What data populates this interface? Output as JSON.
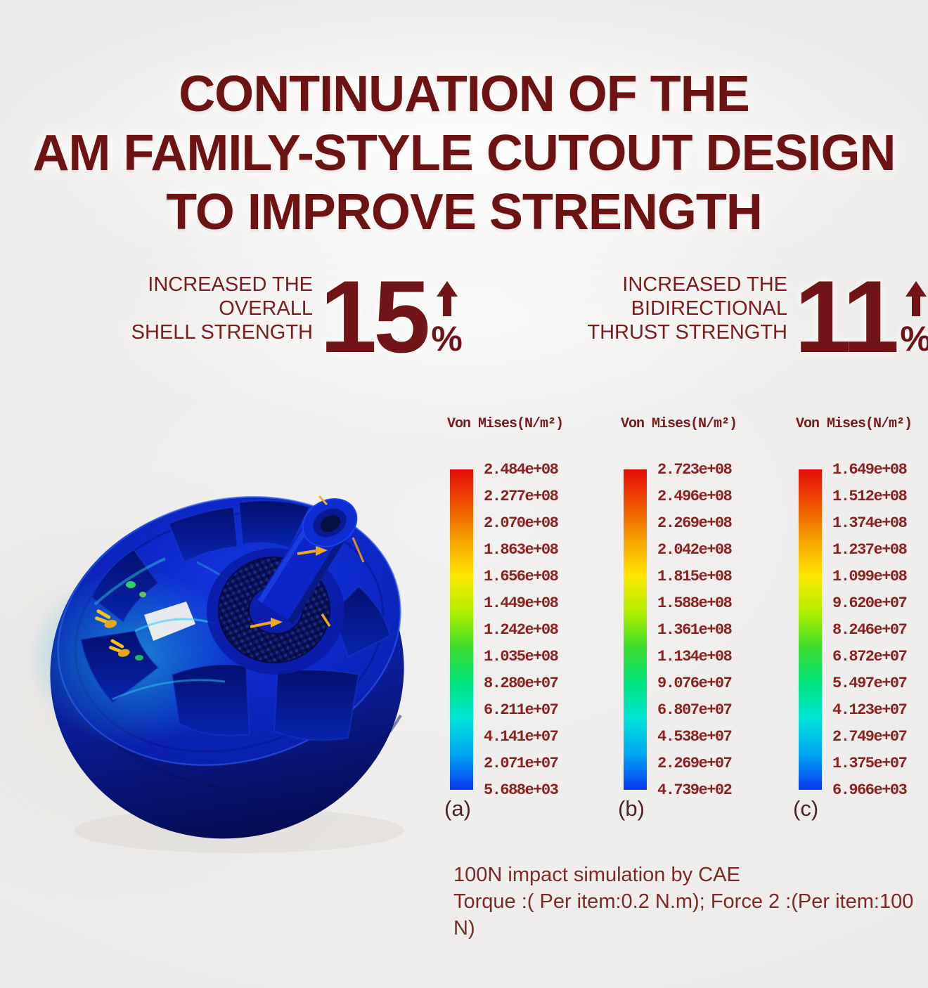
{
  "title": {
    "lines": [
      "CONTINUATION OF THE",
      "AM FAMILY-STYLE CUTOUT DESIGN",
      "TO IMPROVE STRENGTH"
    ]
  },
  "stats": [
    {
      "label_lines": [
        "INCREASED THE OVERALL",
        "SHELL STRENGTH"
      ],
      "value": "15",
      "unit": "%",
      "direction": "up"
    },
    {
      "label_lines": [
        "INCREASED THE BIDIRECTIONAL",
        "THRUST STRENGTH"
      ],
      "value": "11",
      "unit": "%",
      "direction": "up"
    }
  ],
  "chart_data": [
    {
      "type": "heatmap",
      "role": "colorbar-legend",
      "title": "Von Mises(N/m²)",
      "panel_label": "(a)",
      "tick_values": [
        "2.484e+08",
        "2.277e+08",
        "2.070e+08",
        "1.863e+08",
        "1.656e+08",
        "1.449e+08",
        "1.242e+08",
        "1.035e+08",
        "8.280e+07",
        "6.211e+07",
        "4.141e+07",
        "2.071e+07",
        "5.688e+03"
      ],
      "gradient": [
        "#e60c0c",
        "#ef5200",
        "#f7a300",
        "#fde800",
        "#b2ee00",
        "#3ddd2a",
        "#00e47e",
        "#00e4d8",
        "#00a6f2",
        "#0837f2"
      ]
    },
    {
      "type": "heatmap",
      "role": "colorbar-legend",
      "title": "Von Mises(N/m²)",
      "panel_label": "(b)",
      "tick_values": [
        "2.723e+08",
        "2.496e+08",
        "2.269e+08",
        "2.042e+08",
        "1.815e+08",
        "1.588e+08",
        "1.361e+08",
        "1.134e+08",
        "9.076e+07",
        "6.807e+07",
        "4.538e+07",
        "2.269e+07",
        "4.739e+02"
      ],
      "gradient": [
        "#e60c0c",
        "#ef5200",
        "#f7a300",
        "#fde800",
        "#b2ee00",
        "#3ddd2a",
        "#00e47e",
        "#00e4d8",
        "#00a6f2",
        "#0837f2"
      ]
    },
    {
      "type": "heatmap",
      "role": "colorbar-legend",
      "title": "Von Mises(N/m²)",
      "panel_label": "(c)",
      "tick_values": [
        "1.649e+08",
        "1.512e+08",
        "1.374e+08",
        "1.237e+08",
        "1.099e+08",
        "9.620e+07",
        "8.246e+07",
        "6.872e+07",
        "5.497e+07",
        "4.123e+07",
        "2.749e+07",
        "1.375e+07",
        "6.966e+03"
      ],
      "gradient": [
        "#e60c0c",
        "#ef5200",
        "#f7a300",
        "#fde800",
        "#b2ee00",
        "#3ddd2a",
        "#00e47e",
        "#00e4d8",
        "#00a6f2",
        "#0837f2"
      ]
    }
  ],
  "caption": {
    "lines": [
      "100N impact simulation by CAE",
      "Torque :( Per item:0.2 N.m); Force 2 :(Per item:100 N)"
    ]
  },
  "figure": {
    "subject": "blue CAE von Mises stress render of motor bell with shaft",
    "body_color": "#0b24c0",
    "arrow_color": "#f2a81e"
  },
  "colors": {
    "title_maroon": "#6e1313",
    "stat_maroon": "#701418",
    "tick_text": "#8c2121",
    "background": "#efedeb"
  }
}
